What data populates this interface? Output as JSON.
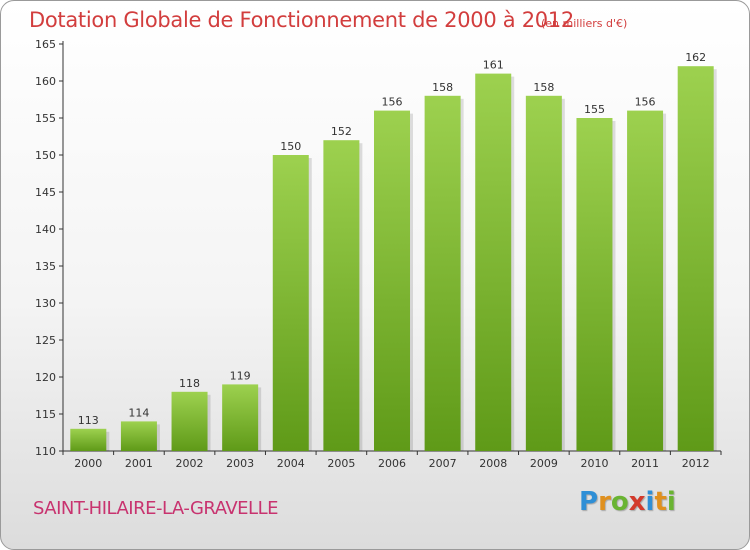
{
  "header": {
    "title": "Dotation Globale de Fonctionnement de 2000 à 2012",
    "unit": "(en milliers d'€)"
  },
  "footer": {
    "commune": "SAINT-HILAIRE-LA-GRAVELLE",
    "logo_text": "Proxiti",
    "logo_letters": [
      "P",
      "r",
      "o",
      "x",
      "i",
      "t",
      "i"
    ],
    "logo_colors": [
      "#2f8fd6",
      "#e0901e",
      "#6ab432",
      "#d33a2b",
      "#2f8fd6",
      "#e0901e",
      "#6ab432"
    ]
  },
  "colors": {
    "bar_top": "#9dd14f",
    "bar_bottom": "#5f9a18",
    "title": "#d23d3d",
    "commune": "#c8336f"
  },
  "chart_data": {
    "type": "bar",
    "categories": [
      "2000",
      "2001",
      "2002",
      "2003",
      "2004",
      "2005",
      "2006",
      "2007",
      "2008",
      "2009",
      "2010",
      "2011",
      "2012"
    ],
    "values": [
      113,
      114,
      118,
      119,
      150,
      152,
      156,
      158,
      161,
      158,
      155,
      156,
      162
    ],
    "title": "Dotation Globale de Fonctionnement de 2000 à 2012",
    "unit_label": "(en milliers d'€)",
    "xlabel": "",
    "ylabel": "",
    "ylim": [
      110,
      165
    ],
    "yticks": [
      110,
      115,
      120,
      125,
      130,
      135,
      140,
      145,
      150,
      155,
      160,
      165
    ],
    "grid": false,
    "data_labels": true
  }
}
